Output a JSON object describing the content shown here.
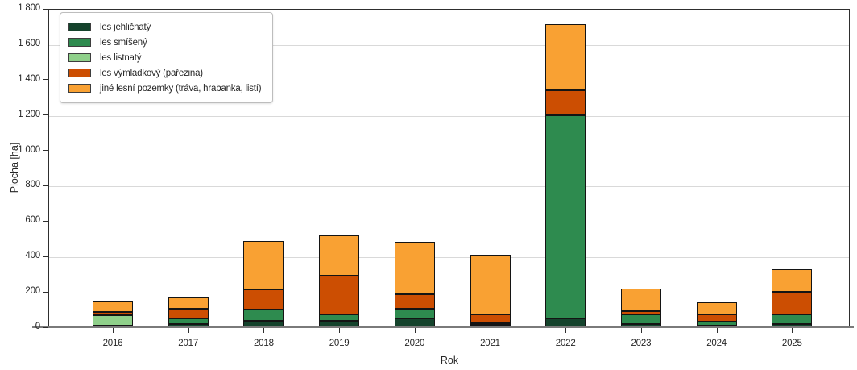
{
  "chart_data": {
    "type": "bar",
    "stacked": true,
    "title": "",
    "xlabel": "Rok",
    "ylabel": "Plocha [ha]",
    "ylim": [
      0,
      1800
    ],
    "ytick_step": 200,
    "grid": true,
    "legend_position": "upper-left",
    "categories": [
      "2016",
      "2017",
      "2018",
      "2019",
      "2020",
      "2021",
      "2022",
      "2023",
      "2024",
      "2025"
    ],
    "series": [
      {
        "name": "les jehličnatý",
        "color": "#14432c",
        "values": [
          10,
          20,
          35,
          35,
          50,
          15,
          50,
          20,
          10,
          20
        ]
      },
      {
        "name": "les smíšený",
        "color": "#2e8b4f",
        "values": [
          0,
          30,
          65,
          40,
          55,
          10,
          1150,
          55,
          20,
          55
        ]
      },
      {
        "name": "les listnatý",
        "color": "#8fd08a",
        "values": [
          60,
          0,
          0,
          0,
          0,
          0,
          0,
          0,
          0,
          0
        ]
      },
      {
        "name": "les výmladkový (pařezina)",
        "color": "#cc4e02",
        "values": [
          15,
          55,
          115,
          215,
          80,
          50,
          140,
          15,
          45,
          125
        ]
      },
      {
        "name": "jiné lesní pozemky (tráva, hrabanka, listí)",
        "color": "#f9a133",
        "values": [
          60,
          65,
          275,
          230,
          300,
          335,
          375,
          130,
          65,
          130
        ]
      }
    ],
    "y_tick_labels": [
      "0",
      "200",
      "400",
      "600",
      "800",
      "1 000",
      "1 200",
      "1 400",
      "1 600",
      "1 800"
    ]
  },
  "style": {
    "grid_color": "#d9d9d9",
    "frame_color": "#2e2e2e",
    "x_axis_color": "#7a7a7a",
    "bar_outline_color": "#141414",
    "text_color": "#262626"
  }
}
